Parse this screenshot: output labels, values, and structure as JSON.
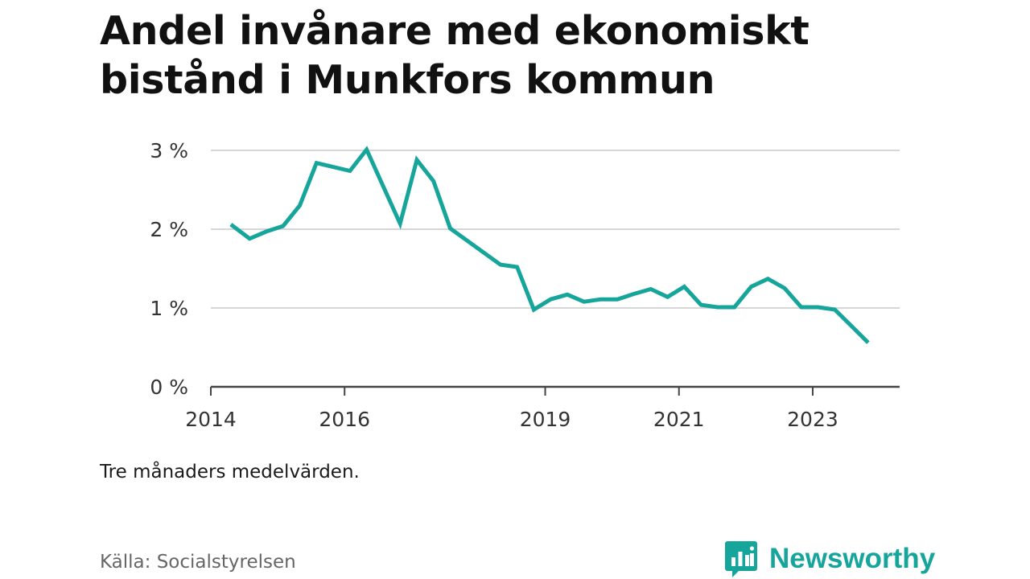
{
  "title": "Andel invånare med ekonomiskt bistånd i Munkfors kommun",
  "note": "Tre månaders medelvärden.",
  "source": "Källa: Socialstyrelsen",
  "brand": {
    "name": "Newsworthy",
    "color": "#16a59b",
    "icon": "newsworthy-logo-icon"
  },
  "chart_data": {
    "type": "line",
    "title": "Andel invånare med ekonomiskt bistånd i Munkfors kommun",
    "xlabel": "",
    "ylabel": "",
    "xlim": [
      2014.0,
      2024.3
    ],
    "ylim": [
      0,
      3
    ],
    "grid": true,
    "line_color": "#16a59b",
    "y_ticks": [
      {
        "value": 0,
        "label": "0 %"
      },
      {
        "value": 1,
        "label": "1 %"
      },
      {
        "value": 2,
        "label": "2 %"
      },
      {
        "value": 3,
        "label": "3 %"
      }
    ],
    "x_ticks": [
      {
        "value": 2014,
        "label": "2014"
      },
      {
        "value": 2016,
        "label": "2016"
      },
      {
        "value": 2019,
        "label": "2019"
      },
      {
        "value": 2021,
        "label": "2021"
      },
      {
        "value": 2023,
        "label": "2023"
      }
    ],
    "series": [
      {
        "x": [
          2014.3,
          2014.58,
          2014.83,
          2015.08,
          2015.33,
          2015.58,
          2016.08,
          2016.33,
          2016.83,
          2017.08,
          2017.33,
          2017.58,
          2018.33,
          2018.58,
          2018.83,
          2019.08,
          2019.33,
          2019.58,
          2019.83,
          2020.08,
          2020.33,
          2020.58,
          2020.83,
          2021.08,
          2021.33,
          2021.58,
          2021.83,
          2022.08,
          2022.33,
          2022.58,
          2022.83,
          2023.08,
          2023.33,
          2023.58,
          2023.83
        ],
        "y": [
          2.06,
          1.88,
          1.97,
          2.04,
          2.3,
          2.84,
          2.74,
          3.01,
          2.07,
          2.88,
          2.61,
          2.01,
          1.55,
          1.52,
          0.98,
          1.11,
          1.17,
          1.08,
          1.11,
          1.11,
          1.18,
          1.24,
          1.14,
          1.27,
          1.04,
          1.01,
          1.01,
          1.27,
          1.37,
          1.25,
          1.01,
          1.01,
          0.98,
          0.77,
          0.56
        ]
      }
    ]
  }
}
